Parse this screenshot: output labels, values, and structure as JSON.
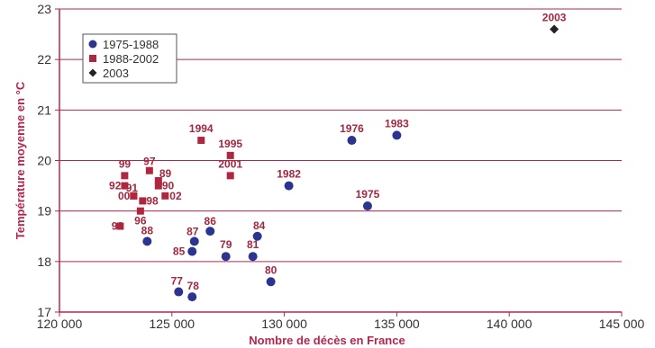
{
  "chart_data": {
    "type": "scatter",
    "title": "",
    "xlabel": "Nombre de décès en France",
    "ylabel": "Température moyenne en °C",
    "xlim": [
      120000,
      145000
    ],
    "ylim": [
      17,
      23
    ],
    "xticks": [
      120000,
      125000,
      130000,
      135000,
      140000,
      145000
    ],
    "xtick_labels": [
      "120 000",
      "125 000",
      "130 000",
      "135 000",
      "140 000",
      "145 000"
    ],
    "yticks": [
      17,
      18,
      19,
      20,
      21,
      22,
      23
    ],
    "ytick_labels": [
      "17",
      "18",
      "19",
      "20",
      "21",
      "22",
      "23"
    ],
    "grid": "horizontal",
    "legend_position": "top-left",
    "colors": {
      "axis": "#b5264f",
      "grid": "#b5264f",
      "series_1975_1988": "#2b3590",
      "series_1988_2002": "#b0263f",
      "series_2003": "#222222",
      "labels": "#a3273f"
    },
    "series": [
      {
        "name": "1975-1988",
        "marker": "circle",
        "color": "#2b3590",
        "points": [
          {
            "label": "1975",
            "x": 133700,
            "y": 19.1
          },
          {
            "label": "1976",
            "x": 133000,
            "y": 20.4
          },
          {
            "label": "77",
            "x": 125300,
            "y": 17.4
          },
          {
            "label": "78",
            "x": 125900,
            "y": 17.3
          },
          {
            "label": "79",
            "x": 127400,
            "y": 18.1
          },
          {
            "label": "80",
            "x": 129400,
            "y": 17.6
          },
          {
            "label": "81",
            "x": 128600,
            "y": 18.1
          },
          {
            "label": "1982",
            "x": 130200,
            "y": 19.5
          },
          {
            "label": "1983",
            "x": 135000,
            "y": 20.5
          },
          {
            "label": "84",
            "x": 128800,
            "y": 18.5
          },
          {
            "label": "85",
            "x": 125900,
            "y": 18.2
          },
          {
            "label": "86",
            "x": 126700,
            "y": 18.6
          },
          {
            "label": "87",
            "x": 126000,
            "y": 18.4
          },
          {
            "label": "88",
            "x": 123900,
            "y": 18.4
          }
        ]
      },
      {
        "name": "1988-2002",
        "marker": "square",
        "color": "#b0263f",
        "points": [
          {
            "label": "89",
            "x": 124400,
            "y": 19.6
          },
          {
            "label": "90",
            "x": 124400,
            "y": 19.5
          },
          {
            "label": "91",
            "x": 123300,
            "y": 19.3
          },
          {
            "label": "92",
            "x": 122900,
            "y": 19.5
          },
          {
            "label": "93",
            "x": 122700,
            "y": 18.7
          },
          {
            "label": "1994",
            "x": 126300,
            "y": 20.4
          },
          {
            "label": "1995",
            "x": 127600,
            "y": 20.1
          },
          {
            "label": "96",
            "x": 123600,
            "y": 19.0
          },
          {
            "label": "97",
            "x": 124000,
            "y": 19.8
          },
          {
            "label": "98",
            "x": 123700,
            "y": 19.2
          },
          {
            "label": "99",
            "x": 122900,
            "y": 19.7
          },
          {
            "label": "00",
            "x": 123300,
            "y": 19.3
          },
          {
            "label": "2001",
            "x": 127600,
            "y": 19.7
          },
          {
            "label": "02",
            "x": 124700,
            "y": 19.3
          }
        ]
      },
      {
        "name": "2003",
        "marker": "diamond",
        "color": "#222222",
        "points": [
          {
            "label": "2003",
            "x": 142000,
            "y": 22.6
          }
        ]
      }
    ]
  }
}
